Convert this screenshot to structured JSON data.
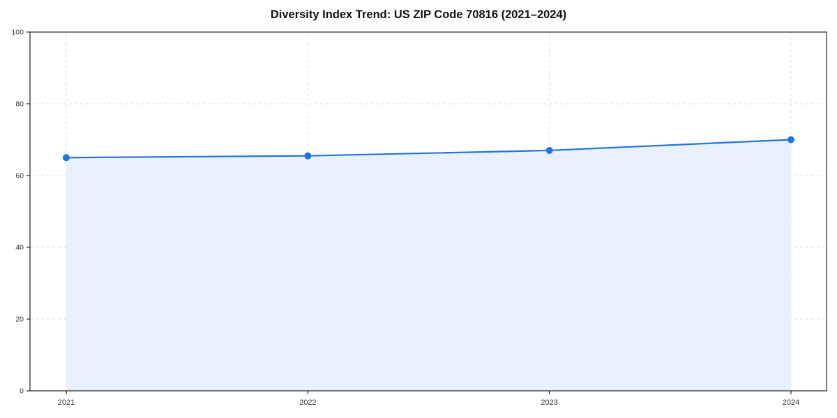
{
  "chart_data": {
    "type": "line",
    "title": "Diversity Index Trend: US ZIP Code 70816 (2021–2024)",
    "x": [
      "2021",
      "2022",
      "2023",
      "2024"
    ],
    "series": [
      {
        "name": "Diversity Index",
        "values": [
          65,
          65.5,
          67,
          70
        ]
      }
    ],
    "xlabel": "",
    "ylabel": "",
    "ylim": [
      0,
      100
    ],
    "yticks": [
      0,
      20,
      40,
      60,
      80,
      100
    ],
    "grid": true,
    "grid_style": "dashed",
    "legend": "none",
    "colors": {
      "line": "#2374d8",
      "marker": "#2374d8",
      "area_fill": "#e8f1fd",
      "grid": "#dcdcdc",
      "spine": "#222222",
      "tick_text": "#333333"
    }
  }
}
